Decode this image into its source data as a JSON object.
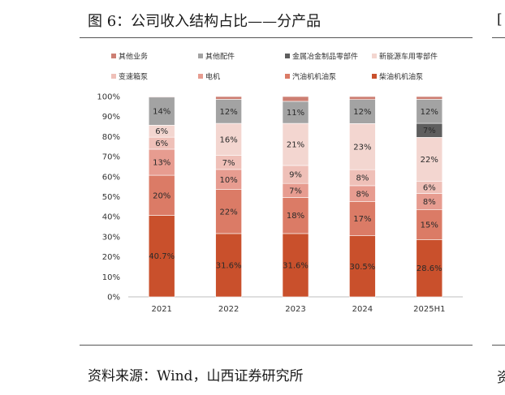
{
  "figure": {
    "title": "图 6：公司收入结构占比——分产品",
    "source": "资料来源：Wind，山西证券研究所"
  },
  "chart_data": {
    "type": "bar",
    "stacked": true,
    "categories": [
      "2021",
      "2022",
      "2023",
      "2024",
      "2025H1"
    ],
    "ylim": [
      0,
      100
    ],
    "yticks": [
      "0%",
      "10%",
      "20%",
      "30%",
      "40%",
      "50%",
      "60%",
      "70%",
      "80%",
      "90%",
      "100%"
    ],
    "legend_position": "top",
    "series": [
      {
        "name": "柴油机机油泵",
        "color": "#c9502c",
        "values": [
          40.7,
          31.6,
          31.6,
          30.5,
          28.6
        ],
        "labels": [
          "40.7%",
          "31.6%",
          "31.6%",
          "30.5%",
          "28.6%"
        ]
      },
      {
        "name": "汽油机机油泵",
        "color": "#db7b66",
        "values": [
          20,
          22,
          18,
          17,
          15
        ],
        "labels": [
          "20%",
          "22%",
          "18%",
          "17%",
          "15%"
        ]
      },
      {
        "name": "电机",
        "color": "#e79c90",
        "values": [
          13,
          10,
          7,
          8,
          8
        ],
        "labels": [
          "13%",
          "10%",
          "7%",
          "8%",
          "8%"
        ]
      },
      {
        "name": "变速箱泵",
        "color": "#efc0b8",
        "values": [
          6,
          7,
          9,
          8,
          6
        ],
        "labels": [
          "6%",
          "7%",
          "9%",
          "8%",
          "6%"
        ]
      },
      {
        "name": "新能源车用零部件",
        "color": "#f3d6d0",
        "values": [
          6,
          16,
          21,
          23,
          22
        ],
        "labels": [
          "6%",
          "16%",
          "21%",
          "23%",
          "22%"
        ]
      },
      {
        "name": "金属冶金制品零部件",
        "color": "#5e5e5e",
        "values": [
          0,
          0,
          0,
          0,
          7
        ],
        "labels": [
          "",
          "",
          "",
          "",
          "7%"
        ]
      },
      {
        "name": "其他配件",
        "color": "#a3a3a3",
        "values": [
          14,
          12,
          11,
          12,
          12
        ],
        "labels": [
          "14%",
          "12%",
          "11%",
          "12%",
          "12%"
        ]
      },
      {
        "name": "其他业务",
        "color": "#cd7f73",
        "values": [
          0.3,
          1.4,
          2.4,
          1.5,
          1.4
        ],
        "labels": [
          "",
          "",
          "",
          "",
          ""
        ]
      }
    ],
    "legend_order": [
      "其他业务",
      "其他配件",
      "金属冶金制品零部件",
      "新能源车用零部件",
      "变速箱泵",
      "电机",
      "汽油机机油泵",
      "柴油机机油泵"
    ]
  }
}
